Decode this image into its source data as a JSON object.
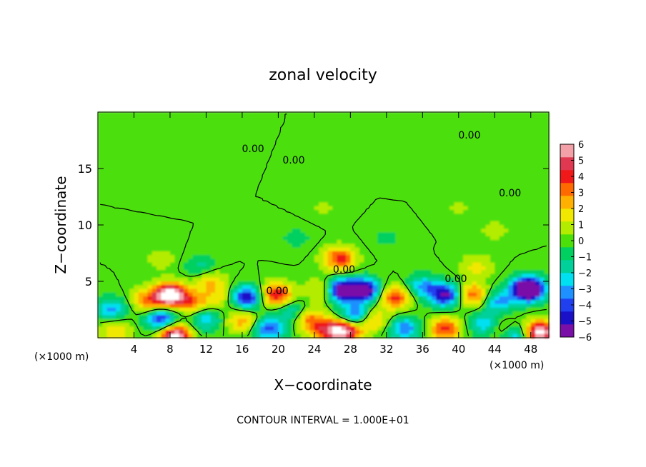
{
  "chart_data": {
    "type": "heatmap",
    "title": "zonal velocity",
    "xlabel": "X−coordinate",
    "ylabel": "Z−coordinate",
    "x_unit_left": "(×1000 m)",
    "x_unit_right": "(×1000 m)",
    "xlim": [
      0,
      50
    ],
    "ylim": [
      0,
      20
    ],
    "x_ticks": [
      "4",
      "8",
      "12",
      "16",
      "20",
      "24",
      "28",
      "32",
      "36",
      "40",
      "44",
      "48"
    ],
    "y_ticks": [
      "5",
      "10",
      "15"
    ],
    "colorbar_ticks": [
      "6",
      "5",
      "4",
      "3",
      "2",
      "1",
      "0",
      "−1",
      "−2",
      "−3",
      "−4",
      "−5",
      "−6"
    ],
    "colorbar_range": [
      -6,
      6
    ],
    "colorbar_colors": [
      "#7a10a8",
      "#1a10c8",
      "#2040f0",
      "#1e90ff",
      "#00e0f0",
      "#00d09a",
      "#00d060",
      "#4ce00a",
      "#b4ec00",
      "#f0e800",
      "#ffb000",
      "#ff6a00",
      "#f01818",
      "#e03850",
      "#f4a0a8"
    ],
    "contour_labels": [
      {
        "text": "0.00",
        "x": 41.2,
        "y": 17.9
      },
      {
        "text": "0.00",
        "x": 17.2,
        "y": 16.7
      },
      {
        "text": "0.00",
        "x": 21.7,
        "y": 15.7
      },
      {
        "text": "0.00",
        "x": 45.7,
        "y": 12.8
      },
      {
        "text": "0.00",
        "x": 27.3,
        "y": 6.0
      },
      {
        "text": "0.00",
        "x": 19.9,
        "y": 4.1
      },
      {
        "text": "0.00",
        "x": 39.7,
        "y": 5.2
      }
    ],
    "features": [
      {
        "x": 8.0,
        "y": 3.8,
        "u": 7.5
      },
      {
        "x": 5.5,
        "y": 3.3,
        "u": 3.0
      },
      {
        "x": 10.5,
        "y": 3.2,
        "u": 3.0
      },
      {
        "x": 7.0,
        "y": 1.6,
        "u": -4.5
      },
      {
        "x": 12.0,
        "y": 1.6,
        "u": -2.5
      },
      {
        "x": 1.5,
        "y": 2.5,
        "u": -3.0
      },
      {
        "x": 2.0,
        "y": 0.7,
        "u": 2.0
      },
      {
        "x": 8.5,
        "y": 0.2,
        "u": 6.5
      },
      {
        "x": 12.5,
        "y": 5.0,
        "u": 2.0
      },
      {
        "x": 13.5,
        "y": 3.6,
        "u": 1.5
      },
      {
        "x": 16.5,
        "y": 3.6,
        "u": -5.0
      },
      {
        "x": 16.0,
        "y": 1.5,
        "u": 2.5
      },
      {
        "x": 19.8,
        "y": 3.8,
        "u": 4.5
      },
      {
        "x": 19.0,
        "y": 0.8,
        "u": -4.0
      },
      {
        "x": 21.5,
        "y": 2.3,
        "u": -2.0
      },
      {
        "x": 23.5,
        "y": 1.6,
        "u": 3.0
      },
      {
        "x": 25.5,
        "y": 0.6,
        "u": 4.0
      },
      {
        "x": 26.8,
        "y": 7.0,
        "u": 4.0
      },
      {
        "x": 25.0,
        "y": 4.2,
        "u": 2.0
      },
      {
        "x": 27.0,
        "y": 4.2,
        "u": -6.5
      },
      {
        "x": 29.5,
        "y": 4.2,
        "u": -6.5
      },
      {
        "x": 28.5,
        "y": 2.0,
        "u": -4.0
      },
      {
        "x": 27.5,
        "y": 0.6,
        "u": 5.5
      },
      {
        "x": 30.5,
        "y": 1.6,
        "u": 2.5
      },
      {
        "x": 33.0,
        "y": 3.6,
        "u": 4.0
      },
      {
        "x": 34.0,
        "y": 0.8,
        "u": -3.5
      },
      {
        "x": 36.0,
        "y": 4.5,
        "u": -3.0
      },
      {
        "x": 38.5,
        "y": 3.8,
        "u": -5.5
      },
      {
        "x": 38.5,
        "y": 0.8,
        "u": 4.0
      },
      {
        "x": 41.5,
        "y": 3.8,
        "u": 3.5
      },
      {
        "x": 42.0,
        "y": 6.3,
        "u": 1.5
      },
      {
        "x": 44.5,
        "y": 3.2,
        "u": -3.0
      },
      {
        "x": 43.0,
        "y": 1.2,
        "u": -3.0
      },
      {
        "x": 45.0,
        "y": 0.7,
        "u": 3.0
      },
      {
        "x": 47.5,
        "y": 4.3,
        "u": -3.5
      },
      {
        "x": 47.8,
        "y": 4.3,
        "u": -6.5
      },
      {
        "x": 49.0,
        "y": 0.5,
        "u": 6.5
      },
      {
        "x": 46.0,
        "y": 0.3,
        "u": -4.0
      },
      {
        "x": 11.5,
        "y": 6.3,
        "u": -1.5
      },
      {
        "x": 7.0,
        "y": 7.0,
        "u": 0.8
      },
      {
        "x": 40.0,
        "y": 11.5,
        "u": 0.5
      },
      {
        "x": 25.0,
        "y": 11.5,
        "u": 0.5
      },
      {
        "x": 22.0,
        "y": 8.8,
        "u": -0.7
      },
      {
        "x": 32.0,
        "y": 8.8,
        "u": -0.6
      },
      {
        "x": 44.0,
        "y": 9.5,
        "u": 0.7
      },
      {
        "x": 10.0,
        "y": 14.0,
        "u": -0.4
      },
      {
        "x": 34.0,
        "y": 15.5,
        "u": 0.3
      }
    ]
  },
  "footer": {
    "contour_interval": "CONTOUR INTERVAL =   1.000E+01"
  }
}
